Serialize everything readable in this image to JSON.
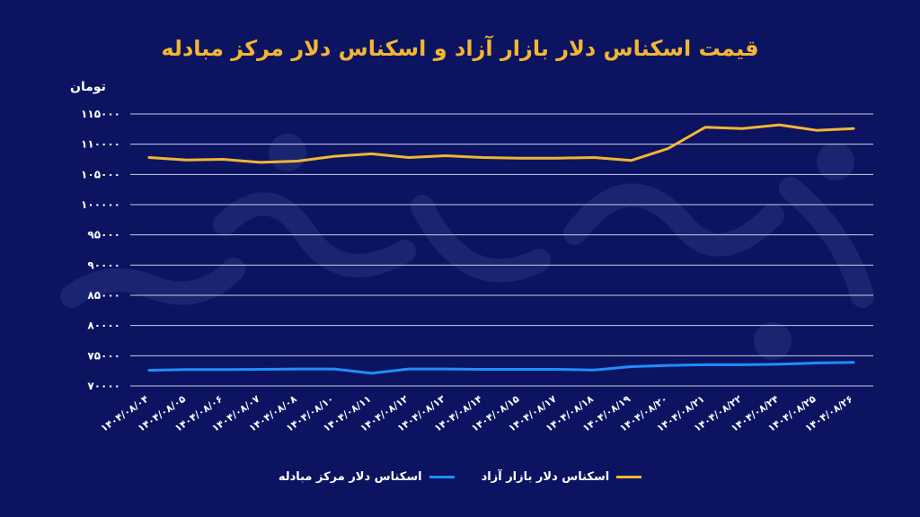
{
  "chart_data": {
    "type": "line",
    "title": "قیمت اسکناس دلار بازار آزاد و اسکناس دلار مرکز مبادله",
    "ylabel": "تومان",
    "xlabel": "",
    "ylim": [
      70000,
      115000
    ],
    "yticks": [
      "۷۰۰۰۰",
      "۷۵۰۰۰",
      "۸۰۰۰۰",
      "۸۵۰۰۰",
      "۹۰۰۰۰",
      "۹۵۰۰۰",
      "۱۰۰۰۰۰",
      "۱۰۵۰۰۰",
      "۱۱۰۰۰۰",
      "۱۱۵۰۰۰"
    ],
    "ytick_values": [
      70000,
      75000,
      80000,
      85000,
      90000,
      95000,
      100000,
      105000,
      110000,
      115000
    ],
    "categories": [
      "۱۴۰۴/۰۸/۰۴",
      "۱۴۰۴/۰۸/۰۵",
      "۱۴۰۴/۰۸/۰۶",
      "۱۴۰۴/۰۸/۰۷",
      "۱۴۰۴/۰۸/۰۸",
      "۱۴۰۴/۰۸/۱۰",
      "۱۴۰۴/۰۸/۱۱",
      "۱۴۰۴/۰۸/۱۲",
      "۱۴۰۴/۰۸/۱۳",
      "۱۴۰۴/۰۸/۱۴",
      "۱۴۰۴/۰۸/۱۵",
      "۱۴۰۴/۰۸/۱۷",
      "۱۴۰۴/۰۸/۱۸",
      "۱۴۰۴/۰۸/۱۹",
      "۱۴۰۴/۰۸/۲۰",
      "۱۴۰۴/۰۸/۲۱",
      "۱۴۰۴/۰۸/۲۲",
      "۱۴۰۴/۰۸/۲۴",
      "۱۴۰۴/۰۸/۲۵",
      "۱۴۰۴/۰۸/۲۶"
    ],
    "grid": true,
    "legend_position": "bottom",
    "series": [
      {
        "name": "اسکناس دلار بازار آزاد",
        "color": "#f2b632",
        "values": [
          107800,
          107400,
          107500,
          107000,
          107200,
          108000,
          108400,
          107800,
          108100,
          107800,
          107700,
          107700,
          107800,
          107300,
          109300,
          112800,
          112600,
          113200,
          112300,
          112600
        ]
      },
      {
        "name": "اسکناس دلار مرکز مبادله",
        "color": "#1e90ff",
        "values": [
          72600,
          72700,
          72700,
          72750,
          72800,
          72800,
          72100,
          72800,
          72800,
          72750,
          72750,
          72750,
          72650,
          73200,
          73400,
          73500,
          73500,
          73600,
          73800,
          73900
        ]
      }
    ]
  }
}
